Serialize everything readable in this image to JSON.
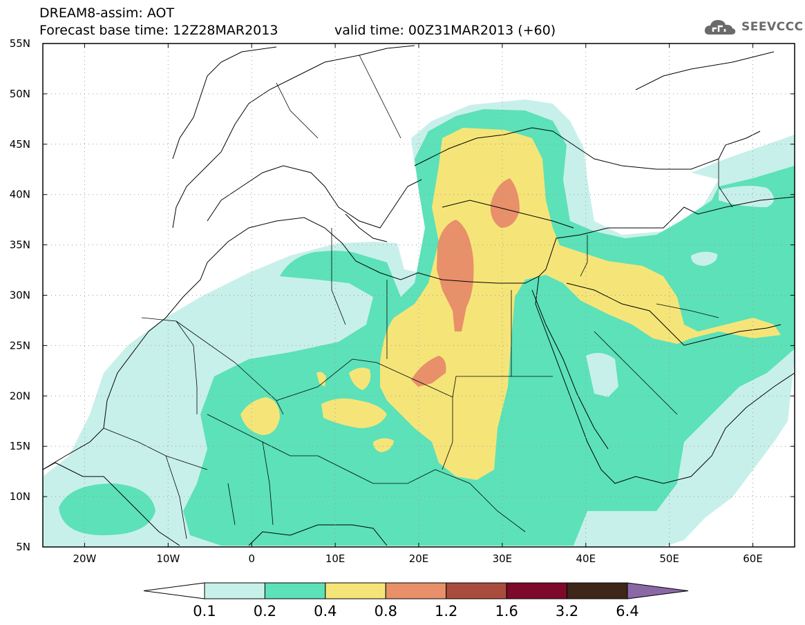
{
  "header": {
    "model_line": "DREAM8-assim: AOT",
    "base_time_line": "Forecast base time: 12Z28MAR2013",
    "valid_time_line": "valid time: 00Z31MAR2013 (+60)"
  },
  "logo": {
    "text": "SEEVCCC",
    "icon": "cloud-icon"
  },
  "map": {
    "lon_range": [
      -25,
      65
    ],
    "lat_range": [
      5,
      55
    ],
    "lat_labels": [
      "5N",
      "10N",
      "15N",
      "20N",
      "25N",
      "30N",
      "35N",
      "40N",
      "45N",
      "50N",
      "55N"
    ],
    "lon_labels": [
      "20W",
      "10W",
      "0",
      "10E",
      "20E",
      "30E",
      "40E",
      "50E",
      "60E"
    ],
    "gridlines": "dotted"
  },
  "colorbar": {
    "colors": [
      "#c8f0ea",
      "#5ce1b8",
      "#f5e579",
      "#e8906a",
      "#a94c3e",
      "#7e0a2b",
      "#3e2718",
      "#8a68a6"
    ],
    "labels": [
      "0.1",
      "0.2",
      "0.4",
      "0.8",
      "1.2",
      "1.6",
      "3.2",
      "6.4"
    ]
  }
}
